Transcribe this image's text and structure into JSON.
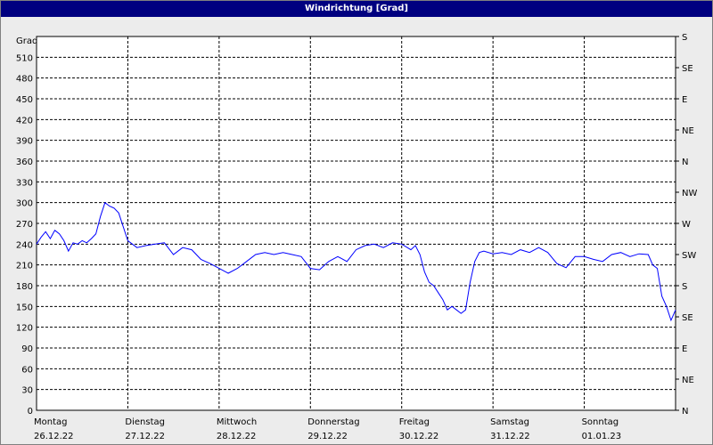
{
  "window": {
    "title": "Windrichtung [Grad]"
  },
  "chart_data": {
    "type": "line",
    "title": "Windrichtung [Grad]",
    "ylabel": "Grad",
    "ylim": [
      0,
      540
    ],
    "yticks": [
      0,
      30,
      60,
      90,
      120,
      150,
      180,
      210,
      240,
      270,
      300,
      330,
      360,
      390,
      420,
      450,
      480,
      510
    ],
    "right_axis_labels": [
      "N",
      "NE",
      "E",
      "SE",
      "S",
      "SW",
      "W",
      "NW",
      "N",
      "NE",
      "E",
      "SE",
      "S"
    ],
    "x_categories": [
      {
        "day": "Montag",
        "date": "26.12.22"
      },
      {
        "day": "Dienstag",
        "date": "27.12.22"
      },
      {
        "day": "Mittwoch",
        "date": "28.12.22"
      },
      {
        "day": "Donnerstag",
        "date": "29.12.22"
      },
      {
        "day": "Freitag",
        "date": "30.12.22"
      },
      {
        "day": "Samstag",
        "date": "31.12.22"
      },
      {
        "day": "Sonntag",
        "date": "01.01.23"
      }
    ],
    "grid": true,
    "series": [
      {
        "name": "",
        "color": "#0000ff",
        "x_days": [
          0.0,
          0.05,
          0.1,
          0.15,
          0.2,
          0.25,
          0.3,
          0.35,
          0.4,
          0.45,
          0.5,
          0.55,
          0.6,
          0.65,
          0.7,
          0.75,
          0.8,
          0.85,
          0.9,
          0.95,
          1.0,
          1.1,
          1.2,
          1.3,
          1.4,
          1.5,
          1.6,
          1.7,
          1.8,
          1.9,
          2.0,
          2.1,
          2.2,
          2.3,
          2.4,
          2.5,
          2.6,
          2.7,
          2.8,
          2.9,
          3.0,
          3.1,
          3.2,
          3.3,
          3.4,
          3.5,
          3.6,
          3.7,
          3.8,
          3.9,
          4.0,
          4.1,
          4.15,
          4.2,
          4.25,
          4.3,
          4.35,
          4.4,
          4.45,
          4.5,
          4.55,
          4.6,
          4.65,
          4.7,
          4.75,
          4.8,
          4.85,
          4.9,
          5.0,
          5.1,
          5.2,
          5.3,
          5.4,
          5.5,
          5.6,
          5.7,
          5.8,
          5.9,
          6.0,
          6.1,
          6.2,
          6.3,
          6.4,
          6.5,
          6.6,
          6.7,
          6.75,
          6.8,
          6.85,
          6.9,
          6.95,
          7.0
        ],
        "values": [
          240,
          250,
          258,
          248,
          260,
          255,
          245,
          230,
          242,
          240,
          245,
          242,
          248,
          255,
          280,
          300,
          295,
          292,
          285,
          265,
          245,
          235,
          238,
          240,
          242,
          225,
          235,
          232,
          218,
          212,
          205,
          198,
          205,
          215,
          225,
          228,
          225,
          228,
          225,
          222,
          205,
          203,
          215,
          222,
          215,
          232,
          238,
          240,
          235,
          242,
          240,
          232,
          238,
          225,
          200,
          185,
          180,
          170,
          160,
          145,
          150,
          145,
          140,
          145,
          185,
          215,
          228,
          230,
          226,
          228,
          225,
          232,
          228,
          235,
          228,
          212,
          206,
          222,
          222,
          218,
          215,
          225,
          228,
          222,
          226,
          225,
          210,
          205,
          165,
          150,
          130,
          145
        ]
      }
    ]
  }
}
